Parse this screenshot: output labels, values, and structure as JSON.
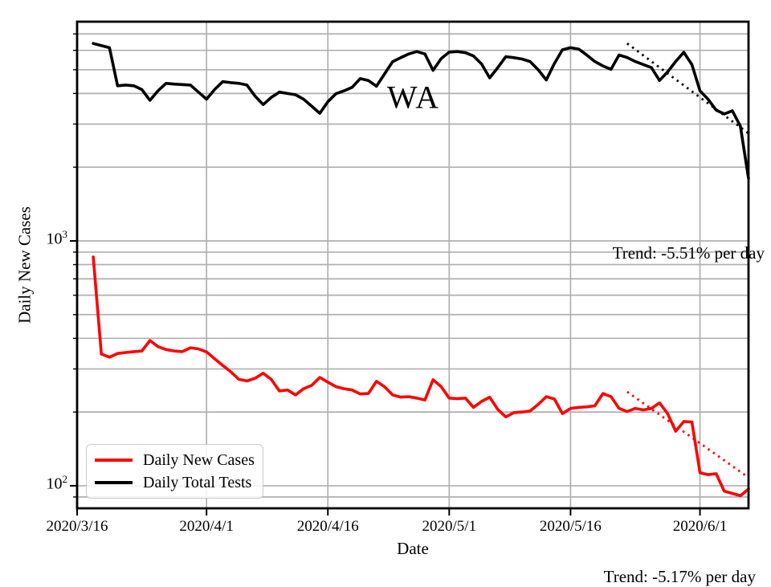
{
  "figure": {
    "background": "#ffffff",
    "grid_color": "#b0b0b0",
    "spine_color": "#000000"
  },
  "axes": {
    "xlabel": "Date",
    "ylabel": "Daily New Cases",
    "y_scale": "log",
    "x_range_days": [
      0,
      83
    ],
    "y_range": [
      80.9,
      7855
    ],
    "x_tick_days": [
      0,
      16,
      31,
      46,
      61,
      77
    ],
    "x_tick_labels": [
      "2020/3/16",
      "2020/4/1",
      "2020/4/16",
      "2020/5/1",
      "2020/5/16",
      "2020/6/1"
    ],
    "y_major_ticks": [
      {
        "base": "10",
        "exp": "2",
        "value": 100
      },
      {
        "base": "10",
        "exp": "3",
        "value": 1000
      }
    ]
  },
  "legend": {
    "items": [
      {
        "label": "Daily New Cases",
        "color": "#ff0000"
      },
      {
        "label": "Daily Total Tests",
        "color": "#000000"
      }
    ]
  },
  "annotations": {
    "state_label": {
      "text": "WA",
      "day": 41.6,
      "value": 3850
    },
    "trend_tests": {
      "text": "Trend: -5.51% per day"
    },
    "trend_cases": {
      "text": "Trend: -5.17% per day"
    }
  },
  "chart_data": {
    "type": "line",
    "title": "WA",
    "xlabel": "Date",
    "ylabel": "Daily New Cases",
    "x_unit": "days since 2020/3/16",
    "x_axis_dates": [
      "2020/3/16",
      "2020/4/1",
      "2020/4/16",
      "2020/5/1",
      "2020/5/16",
      "2020/6/1"
    ],
    "ylim": [
      80.9,
      7855
    ],
    "grid": true,
    "legend_position": "lower left",
    "series": [
      {
        "name": "Daily New Cases",
        "color": "#ff0000",
        "style": "solid",
        "points": [
          [
            2,
            860
          ],
          [
            3,
            345
          ],
          [
            4,
            335
          ],
          [
            5,
            347
          ],
          [
            6,
            350
          ],
          [
            7,
            353
          ],
          [
            8,
            355
          ],
          [
            9,
            392
          ],
          [
            10,
            370
          ],
          [
            11,
            360
          ],
          [
            12,
            355
          ],
          [
            13,
            353
          ],
          [
            14,
            366
          ],
          [
            15,
            362
          ],
          [
            16,
            352
          ],
          [
            17,
            330
          ],
          [
            18,
            310
          ],
          [
            19,
            292
          ],
          [
            20,
            272
          ],
          [
            21,
            268
          ],
          [
            22,
            275
          ],
          [
            23,
            288
          ],
          [
            24,
            272
          ],
          [
            25,
            244
          ],
          [
            26,
            246
          ],
          [
            27,
            235
          ],
          [
            28,
            249
          ],
          [
            29,
            257
          ],
          [
            30,
            277
          ],
          [
            31,
            265
          ],
          [
            32,
            254
          ],
          [
            33,
            249
          ],
          [
            34,
            246
          ],
          [
            35,
            237
          ],
          [
            36,
            238
          ],
          [
            37,
            267
          ],
          [
            38,
            254
          ],
          [
            39,
            235
          ],
          [
            40,
            230
          ],
          [
            41,
            231
          ],
          [
            42,
            228
          ],
          [
            43,
            224
          ],
          [
            44,
            271
          ],
          [
            45,
            254
          ],
          [
            46,
            228
          ],
          [
            47,
            227
          ],
          [
            48,
            228
          ],
          [
            49,
            209
          ],
          [
            50,
            221
          ],
          [
            51,
            230
          ],
          [
            52,
            205
          ],
          [
            53,
            191
          ],
          [
            54,
            199
          ],
          [
            55,
            200
          ],
          [
            56,
            202
          ],
          [
            57,
            215
          ],
          [
            58,
            231
          ],
          [
            59,
            226
          ],
          [
            60,
            197
          ],
          [
            61,
            207
          ],
          [
            62,
            209
          ],
          [
            63,
            210
          ],
          [
            64,
            212
          ],
          [
            65,
            238
          ],
          [
            66,
            231
          ],
          [
            67,
            207
          ],
          [
            68,
            201
          ],
          [
            69,
            207
          ],
          [
            70,
            204
          ],
          [
            71,
            207
          ],
          [
            72,
            218
          ],
          [
            73,
            197
          ],
          [
            74,
            167
          ],
          [
            75,
            183
          ],
          [
            76,
            182
          ],
          [
            77,
            113
          ],
          [
            78,
            111
          ],
          [
            79,
            112
          ],
          [
            80,
            95
          ],
          [
            81,
            93
          ],
          [
            82,
            91
          ],
          [
            83,
            97
          ]
        ]
      },
      {
        "name": "Daily Total Tests",
        "color": "#000000",
        "style": "solid",
        "points": [
          [
            2,
            6400
          ],
          [
            4,
            6150
          ],
          [
            5,
            4300
          ],
          [
            6,
            4330
          ],
          [
            7,
            4300
          ],
          [
            8,
            4150
          ],
          [
            9,
            3750
          ],
          [
            10,
            4100
          ],
          [
            11,
            4400
          ],
          [
            12,
            4370
          ],
          [
            13,
            4350
          ],
          [
            14,
            4330
          ],
          [
            15,
            4050
          ],
          [
            16,
            3790
          ],
          [
            17,
            4150
          ],
          [
            18,
            4470
          ],
          [
            19,
            4430
          ],
          [
            20,
            4400
          ],
          [
            21,
            4330
          ],
          [
            22,
            3900
          ],
          [
            23,
            3600
          ],
          [
            24,
            3850
          ],
          [
            25,
            4050
          ],
          [
            26,
            4000
          ],
          [
            27,
            3950
          ],
          [
            28,
            3790
          ],
          [
            29,
            3550
          ],
          [
            30,
            3320
          ],
          [
            31,
            3700
          ],
          [
            32,
            3990
          ],
          [
            33,
            4100
          ],
          [
            34,
            4240
          ],
          [
            35,
            4600
          ],
          [
            36,
            4520
          ],
          [
            37,
            4280
          ],
          [
            38,
            4800
          ],
          [
            39,
            5390
          ],
          [
            40,
            5600
          ],
          [
            41,
            5800
          ],
          [
            42,
            5930
          ],
          [
            43,
            5800
          ],
          [
            44,
            4970
          ],
          [
            45,
            5550
          ],
          [
            46,
            5900
          ],
          [
            47,
            5930
          ],
          [
            48,
            5870
          ],
          [
            49,
            5690
          ],
          [
            50,
            5280
          ],
          [
            51,
            4630
          ],
          [
            52,
            5100
          ],
          [
            53,
            5650
          ],
          [
            54,
            5600
          ],
          [
            55,
            5530
          ],
          [
            56,
            5400
          ],
          [
            57,
            5000
          ],
          [
            58,
            4540
          ],
          [
            59,
            5300
          ],
          [
            60,
            6030
          ],
          [
            61,
            6150
          ],
          [
            62,
            6070
          ],
          [
            63,
            5740
          ],
          [
            64,
            5400
          ],
          [
            65,
            5180
          ],
          [
            66,
            5020
          ],
          [
            67,
            5740
          ],
          [
            68,
            5610
          ],
          [
            69,
            5400
          ],
          [
            70,
            5250
          ],
          [
            71,
            5100
          ],
          [
            72,
            4520
          ],
          [
            73,
            4900
          ],
          [
            74,
            5400
          ],
          [
            75,
            5890
          ],
          [
            76,
            5250
          ],
          [
            77,
            4100
          ],
          [
            78,
            3790
          ],
          [
            79,
            3420
          ],
          [
            80,
            3300
          ],
          [
            81,
            3400
          ],
          [
            82,
            2940
          ],
          [
            83,
            1800
          ]
        ]
      },
      {
        "name": "Daily New Cases trend",
        "color": "#ff0000",
        "style": "dotted",
        "trend_pct_per_day": -5.17,
        "points": [
          [
            68,
            242
          ],
          [
            83,
            108
          ]
        ]
      },
      {
        "name": "Daily Total Tests trend",
        "color": "#000000",
        "style": "dotted",
        "trend_pct_per_day": -5.51,
        "points": [
          [
            68,
            6400
          ],
          [
            83,
            2750
          ]
        ]
      }
    ]
  }
}
